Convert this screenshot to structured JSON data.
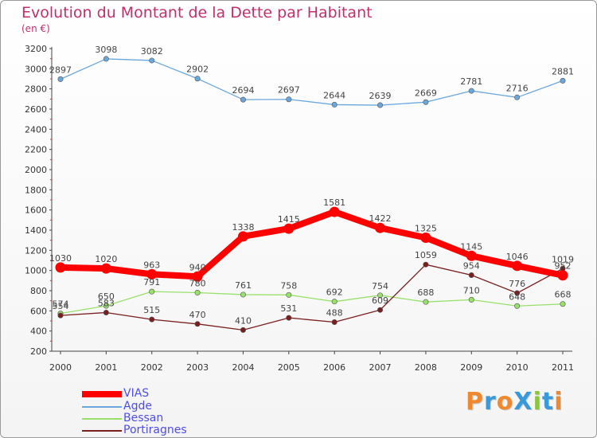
{
  "title": "Evolution du Montant de la Dette par Habitant",
  "unit": "(en €)",
  "logo": "ProXiti",
  "chart_data": {
    "type": "line",
    "title": "Evolution du Montant de la Dette par Habitant",
    "ylabel": "(en €)",
    "xlabel": "",
    "categories": [
      "2000",
      "2001",
      "2002",
      "2003",
      "2004",
      "2005",
      "2006",
      "2007",
      "2008",
      "2009",
      "2010",
      "2011"
    ],
    "ylim": [
      200,
      3200
    ],
    "yticks": [
      200,
      400,
      600,
      800,
      1000,
      1200,
      1400,
      1600,
      1800,
      2000,
      2200,
      2400,
      2600,
      2800,
      3000,
      3200
    ],
    "grid": false,
    "legend": "bottom-left",
    "series": [
      {
        "name": "VIAS",
        "color": "#ff0000",
        "values": [
          1030,
          1020,
          963,
          940,
          1338,
          1415,
          1581,
          1422,
          1325,
          1145,
          1046,
          952
        ]
      },
      {
        "name": "Agde",
        "color": "#6aa7dc",
        "values": [
          2897,
          3098,
          3082,
          2902,
          2694,
          2697,
          2644,
          2639,
          2669,
          2781,
          2716,
          2881
        ]
      },
      {
        "name": "Bessan",
        "color": "#99e06b",
        "values": [
          574,
          650,
          791,
          780,
          761,
          758,
          692,
          754,
          688,
          710,
          648,
          668
        ]
      },
      {
        "name": "Portiragnes",
        "color": "#7a1f1f",
        "values": [
          554,
          583,
          515,
          470,
          410,
          531,
          488,
          609,
          1059,
          954,
          776,
          1019
        ]
      }
    ]
  }
}
